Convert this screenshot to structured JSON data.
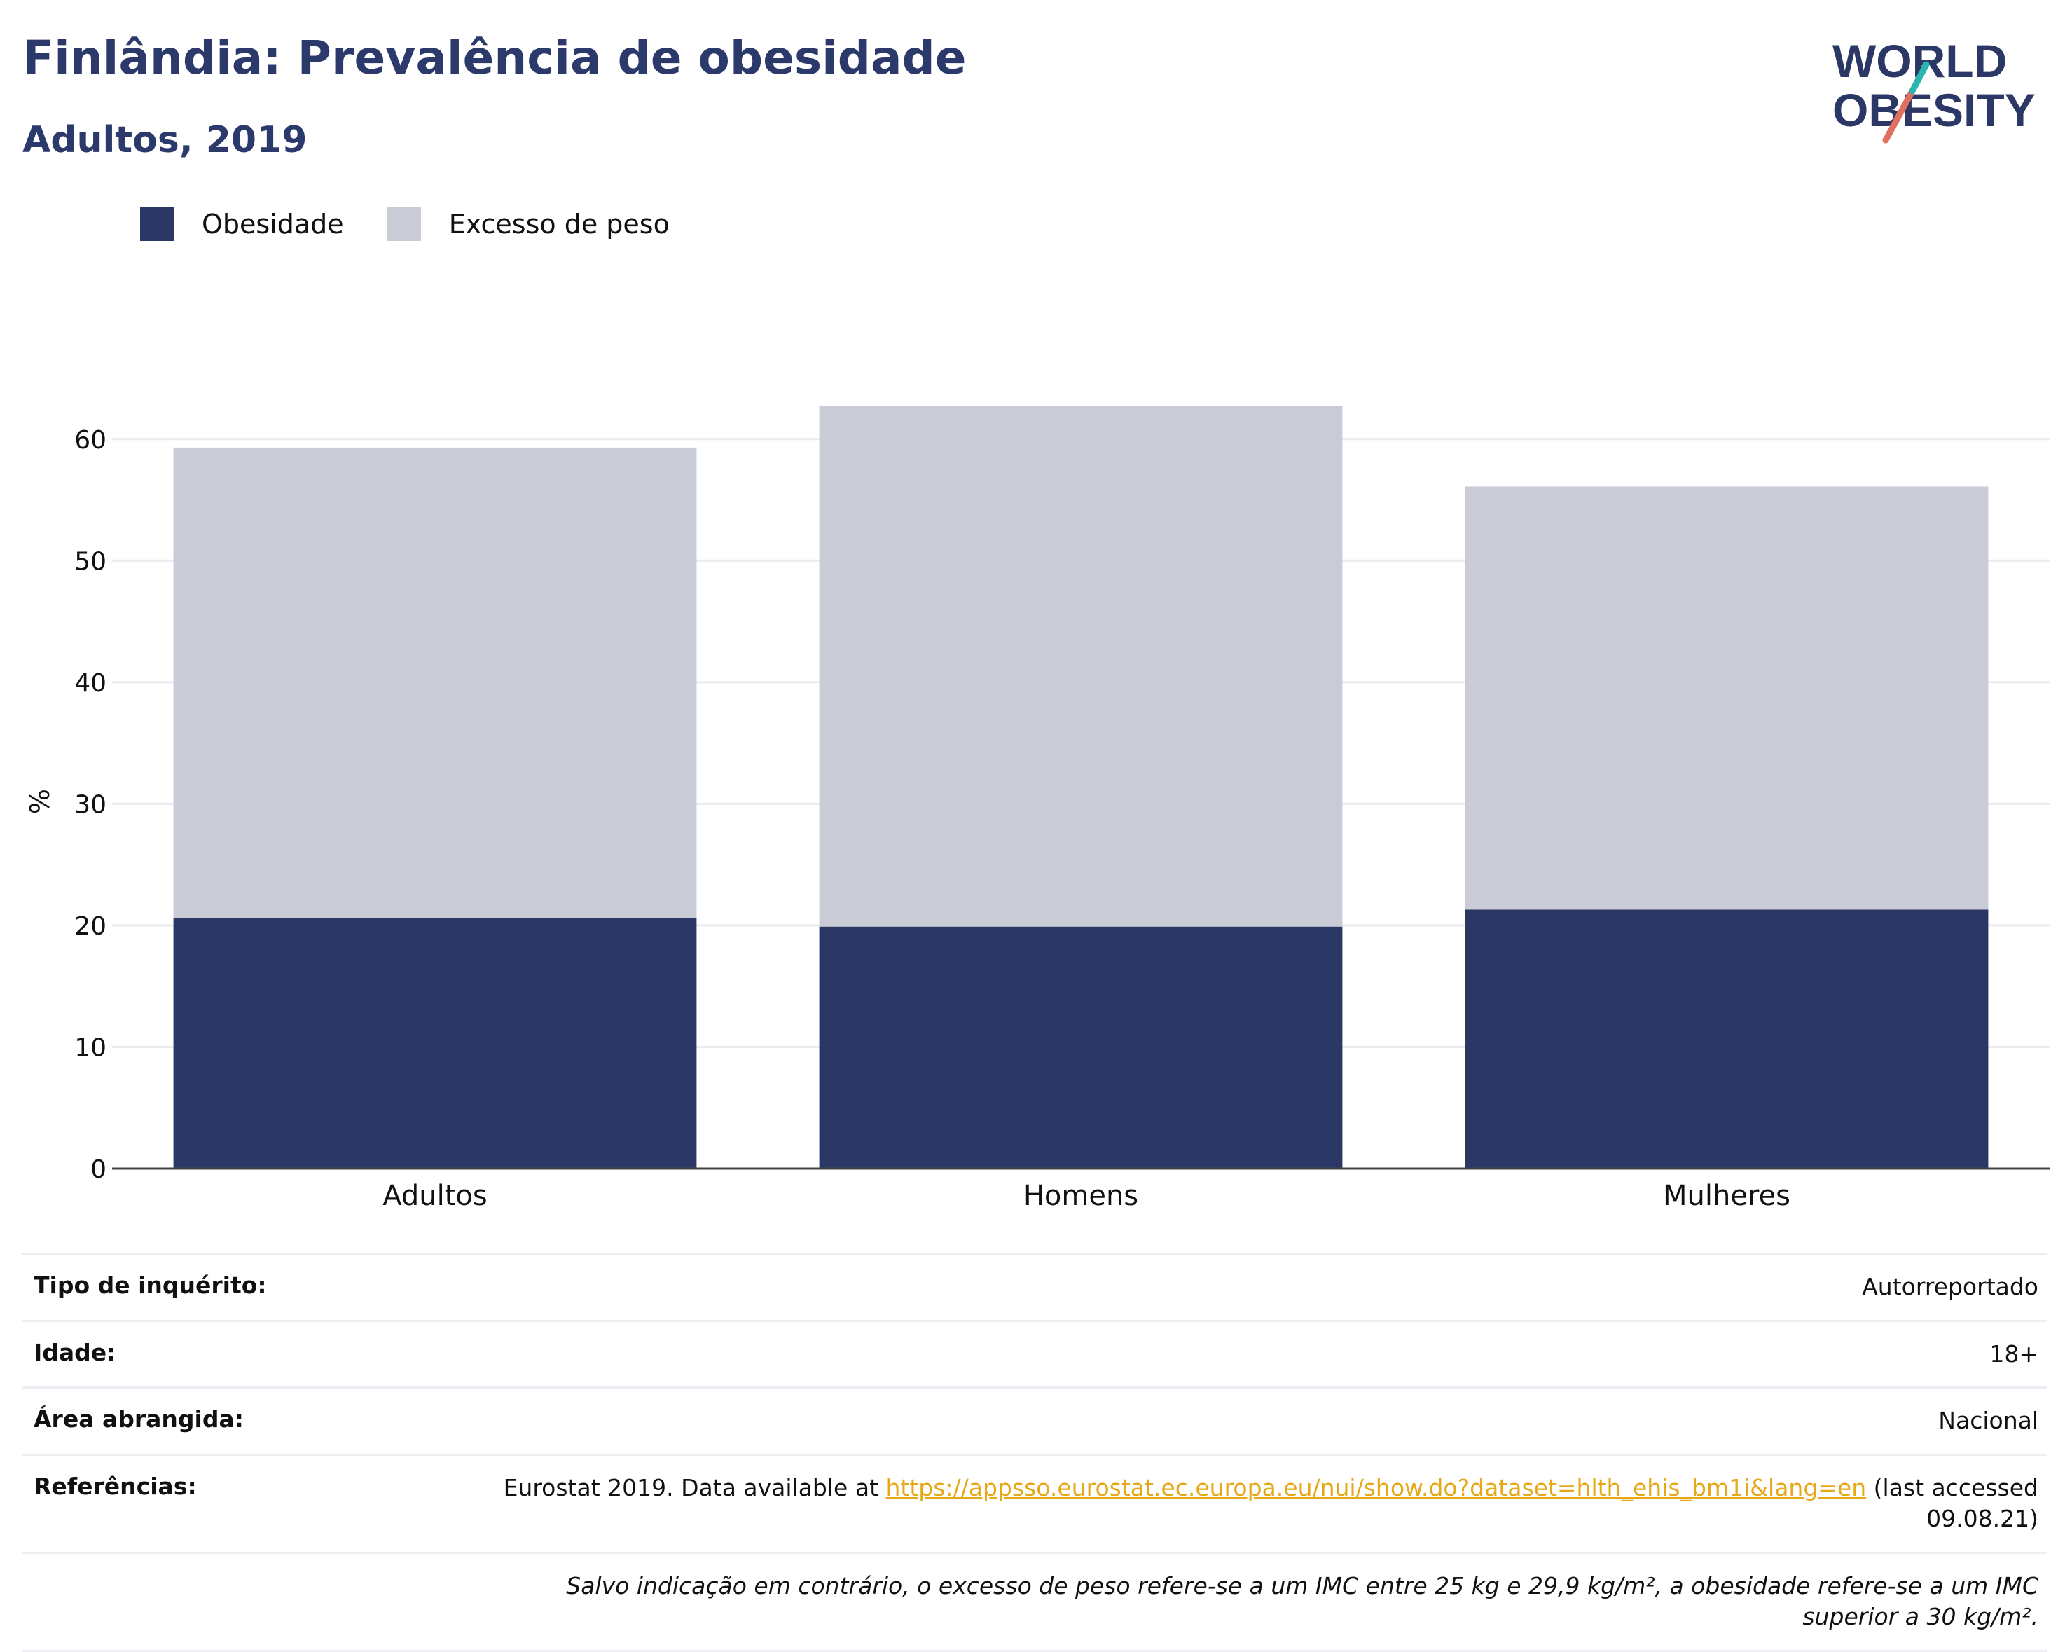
{
  "header": {
    "title": "Finlândia: Prevalência de obesidade",
    "subtitle": "Adultos, 2019"
  },
  "logo": {
    "line1": "WORLD",
    "line2": "OBESITY"
  },
  "legend": {
    "items": [
      {
        "label": "Obesidade",
        "color": "#2b3764"
      },
      {
        "label": "Excesso de peso",
        "color": "#c9cbd7"
      }
    ]
  },
  "chart_data": {
    "type": "bar",
    "stacked": true,
    "categories": [
      "Adultos",
      "Homens",
      "Mulheres"
    ],
    "series": [
      {
        "name": "Obesidade",
        "color": "#2b3764",
        "values": [
          20.6,
          19.9,
          21.3
        ]
      },
      {
        "name": "Excesso de peso",
        "color": "#c9cbd7",
        "values": [
          38.7,
          42.8,
          34.8
        ]
      }
    ],
    "ylabel": "%",
    "ylim": [
      0,
      65
    ],
    "yticks": [
      0,
      10,
      20,
      30,
      40,
      50,
      60
    ],
    "grid": true,
    "legend_position": "top-left"
  },
  "info": {
    "rows": [
      {
        "key": "Tipo de inquérito:",
        "value": "Autorreportado"
      },
      {
        "key": "Idade:",
        "value": "18+"
      },
      {
        "key": "Área abrangida:",
        "value": "Nacional"
      }
    ],
    "references": {
      "key": "Referências:",
      "prefix": "Eurostat 2019. Data available at ",
      "link": "https://appsso.eurostat.ec.europa.eu/nui/show.do?dataset=hlth_ehis_bm1i&lang=en",
      "suffix": " (last accessed 09.08.21)"
    },
    "note": "Salvo indicação em contrário, o excesso de peso refere-se a um IMC entre 25 kg e 29,9 kg/m², a obesidade refere-se a um IMC superior a 30 kg/m²."
  }
}
